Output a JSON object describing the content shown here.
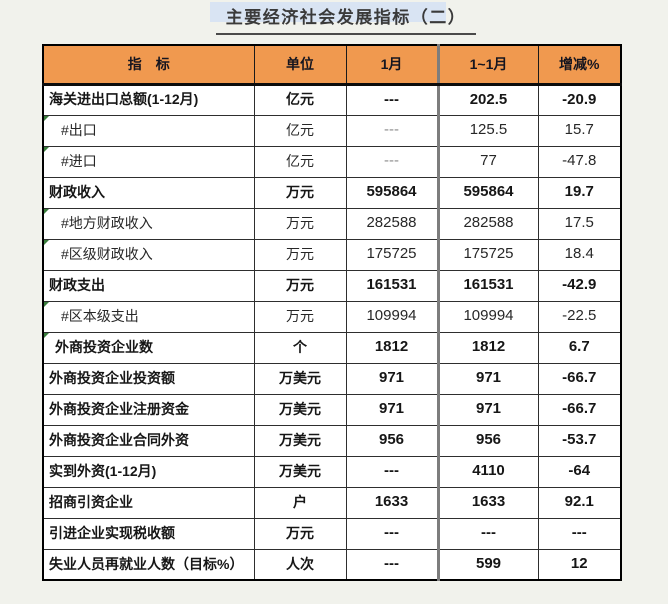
{
  "title": "主要经济社会发展指标（二）",
  "colors": {
    "page_bg": "#f1f2ec",
    "header_bg": "#F0994F",
    "marker_green": "#3a7d3c",
    "title_highlight": "#d9e4f3",
    "divider_gray": "#7d7d7d"
  },
  "table": {
    "columns": [
      "指　标",
      "单位",
      "1月",
      "1~1月",
      "增减%"
    ],
    "rows": [
      {
        "indicator": "海关进出口总额(1-12月)",
        "unit": "亿元",
        "jan": "---",
        "cum": "202.5",
        "change": "-20.9",
        "bold": true,
        "indent": 0,
        "marker": false
      },
      {
        "indicator": "#出口",
        "unit": "亿元",
        "jan": "---",
        "cum": "125.5",
        "change": "15.7",
        "bold": false,
        "indent": 2,
        "marker": true
      },
      {
        "indicator": "#进口",
        "unit": "亿元",
        "jan": "---",
        "cum": "77",
        "change": "-47.8",
        "bold": false,
        "indent": 2,
        "marker": true
      },
      {
        "indicator": "财政收入",
        "unit": "万元",
        "jan": "595864",
        "cum": "595864",
        "change": "19.7",
        "bold": true,
        "indent": 0,
        "marker": false
      },
      {
        "indicator": "#地方财政收入",
        "unit": "万元",
        "jan": "282588",
        "cum": "282588",
        "change": "17.5",
        "bold": false,
        "indent": 2,
        "marker": true
      },
      {
        "indicator": "#区级财政收入",
        "unit": "万元",
        "jan": "175725",
        "cum": "175725",
        "change": "18.4",
        "bold": false,
        "indent": 2,
        "marker": true
      },
      {
        "indicator": "财政支出",
        "unit": "万元",
        "jan": "161531",
        "cum": "161531",
        "change": "-42.9",
        "bold": true,
        "indent": 0,
        "marker": false
      },
      {
        "indicator": "#区本级支出",
        "unit": "万元",
        "jan": "109994",
        "cum": "109994",
        "change": "-22.5",
        "bold": false,
        "indent": 2,
        "marker": true
      },
      {
        "indicator": "外商投资企业数",
        "unit": "个",
        "jan": "1812",
        "cum": "1812",
        "change": "6.7",
        "bold": true,
        "indent": 1,
        "marker": true
      },
      {
        "indicator": "外商投资企业投资额",
        "unit": "万美元",
        "jan": "971",
        "cum": "971",
        "change": "-66.7",
        "bold": true,
        "indent": 0,
        "marker": false
      },
      {
        "indicator": "外商投资企业注册资金",
        "unit": "万美元",
        "jan": "971",
        "cum": "971",
        "change": "-66.7",
        "bold": true,
        "indent": 0,
        "marker": false
      },
      {
        "indicator": "外商投资企业合同外资",
        "unit": "万美元",
        "jan": "956",
        "cum": "956",
        "change": "-53.7",
        "bold": true,
        "indent": 0,
        "marker": false
      },
      {
        "indicator": "实到外资(1-12月)",
        "unit": "万美元",
        "jan": "---",
        "cum": "4110",
        "change": "-64",
        "bold": true,
        "indent": 0,
        "marker": false
      },
      {
        "indicator": "招商引资企业",
        "unit": "户",
        "jan": "1633",
        "cum": "1633",
        "change": "92.1",
        "bold": true,
        "indent": 0,
        "marker": false
      },
      {
        "indicator": "引进企业实现税收额",
        "unit": "万元",
        "jan": "---",
        "cum": "---",
        "change": "---",
        "bold": true,
        "indent": 0,
        "marker": false
      },
      {
        "indicator": "失业人员再就业人数（目标%）",
        "unit": "人次",
        "jan": "---",
        "cum": "599",
        "change": "12",
        "bold": true,
        "indent": 0,
        "marker": false
      }
    ]
  }
}
